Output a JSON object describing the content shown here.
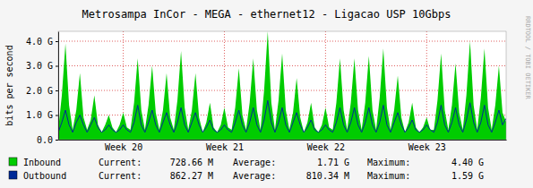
{
  "chart_data": {
    "type": "area",
    "title": "Metrosampa InCor - MEGA - ethernet12 - Ligacao USP 10Gbps",
    "y_label": "bits per second",
    "watermark": "RRDTOOL / TOBI OETIKER",
    "grid": true,
    "xlim": [
      0,
      31
    ],
    "xticks": [
      {
        "value": 4.5,
        "label": "Week 20"
      },
      {
        "value": 11.5,
        "label": "Week 21"
      },
      {
        "value": 18.5,
        "label": "Week 22"
      },
      {
        "value": 25.5,
        "label": "Week 23"
      }
    ],
    "ylim": [
      0,
      4.4
    ],
    "yticks": [
      {
        "value": 0,
        "label": "0.0"
      },
      {
        "value": 1,
        "label": "1.0 G"
      },
      {
        "value": 2,
        "label": "2.0 G"
      },
      {
        "value": 3,
        "label": "3.0 G"
      },
      {
        "value": 4,
        "label": "4.0 G"
      }
    ],
    "x": [
      0,
      0.25,
      0.5,
      0.75,
      1,
      1.25,
      1.5,
      1.75,
      2,
      2.25,
      2.5,
      2.75,
      3,
      3.25,
      3.5,
      3.75,
      4,
      4.25,
      4.5,
      4.75,
      5,
      5.25,
      5.5,
      5.75,
      6,
      6.25,
      6.5,
      6.75,
      7,
      7.25,
      7.5,
      7.75,
      8,
      8.25,
      8.5,
      8.75,
      9,
      9.25,
      9.5,
      9.75,
      10,
      10.25,
      10.5,
      10.75,
      11,
      11.25,
      11.5,
      11.75,
      12,
      12.25,
      12.5,
      12.75,
      13,
      13.25,
      13.5,
      13.75,
      14,
      14.25,
      14.5,
      14.75,
      15,
      15.25,
      15.5,
      15.75,
      16,
      16.25,
      16.5,
      16.75,
      17,
      17.25,
      17.5,
      17.75,
      18,
      18.25,
      18.5,
      18.75,
      19,
      19.25,
      19.5,
      19.75,
      20,
      20.25,
      20.5,
      20.75,
      21,
      21.25,
      21.5,
      21.75,
      22,
      22.25,
      22.5,
      22.75,
      23,
      23.25,
      23.5,
      23.75,
      24,
      24.25,
      24.5,
      24.75,
      25,
      25.25,
      25.5,
      25.75,
      26,
      26.25,
      26.5,
      26.75,
      27,
      27.25,
      27.5,
      27.75,
      28,
      28.25,
      28.5,
      28.75,
      29,
      29.25,
      29.5,
      29.75,
      30,
      30.25,
      30.5,
      30.75,
      31
    ],
    "series": [
      {
        "name": "Inbound",
        "type": "area",
        "color": "#00cc00",
        "values": [
          0.4,
          1.8,
          3.9,
          1.4,
          0.4,
          1.2,
          2.7,
          0.9,
          0.4,
          0.8,
          1.8,
          0.6,
          0.3,
          0.6,
          1.0,
          0.5,
          0.3,
          0.6,
          1.1,
          0.5,
          0.4,
          1.5,
          3.3,
          1.2,
          0.4,
          1.4,
          3.0,
          1.1,
          0.4,
          1.2,
          2.7,
          0.9,
          0.4,
          1.6,
          3.6,
          1.3,
          0.4,
          1.2,
          2.7,
          0.9,
          0.3,
          0.7,
          1.5,
          0.5,
          0.3,
          0.6,
          1.3,
          0.5,
          0.4,
          1.3,
          2.9,
          1.0,
          0.4,
          1.5,
          3.3,
          1.2,
          0.4,
          2.0,
          4.4,
          1.5,
          0.4,
          1.6,
          3.5,
          1.2,
          0.4,
          1.1,
          2.5,
          0.9,
          0.3,
          0.7,
          1.5,
          0.5,
          0.3,
          0.6,
          1.3,
          0.5,
          0.4,
          1.5,
          3.3,
          1.2,
          0.4,
          1.5,
          3.3,
          1.2,
          0.4,
          1.5,
          3.4,
          1.2,
          0.4,
          1.7,
          3.7,
          1.3,
          0.4,
          1.2,
          2.6,
          0.9,
          0.3,
          0.7,
          1.5,
          0.5,
          0.3,
          0.5,
          0.9,
          0.4,
          0.4,
          1.6,
          3.5,
          1.2,
          0.4,
          1.4,
          3.1,
          1.1,
          0.4,
          1.8,
          4.0,
          1.4,
          0.4,
          1.7,
          3.7,
          1.3,
          0.4,
          1.4,
          3.0,
          1.1,
          0.73
        ],
        "stats": [
          {
            "name": "Current:",
            "text": "728.66 M"
          },
          {
            "name": "Average:",
            "text": "1.71 G"
          },
          {
            "name": "Maximum:",
            "text": "4.40 G"
          }
        ]
      },
      {
        "name": "Outbound",
        "type": "line",
        "color": "#002a97",
        "values": [
          0.3,
          0.7,
          1.2,
          0.6,
          0.3,
          0.7,
          1.0,
          0.6,
          0.3,
          0.6,
          0.9,
          0.5,
          0.3,
          0.4,
          0.6,
          0.4,
          0.3,
          0.4,
          0.6,
          0.4,
          0.3,
          0.7,
          1.4,
          0.6,
          0.3,
          0.7,
          1.2,
          0.6,
          0.3,
          0.7,
          1.1,
          0.6,
          0.3,
          0.7,
          1.3,
          0.6,
          0.3,
          0.7,
          1.1,
          0.6,
          0.3,
          0.5,
          0.8,
          0.4,
          0.3,
          0.4,
          0.6,
          0.4,
          0.3,
          0.7,
          1.2,
          0.6,
          0.3,
          0.7,
          1.3,
          0.6,
          0.3,
          0.8,
          1.59,
          0.7,
          0.3,
          0.7,
          1.3,
          0.6,
          0.3,
          0.7,
          1.1,
          0.6,
          0.3,
          0.5,
          0.8,
          0.4,
          0.3,
          0.4,
          0.6,
          0.4,
          0.3,
          0.7,
          1.3,
          0.6,
          0.3,
          0.7,
          1.3,
          0.6,
          0.3,
          0.7,
          1.3,
          0.6,
          0.3,
          0.7,
          1.4,
          0.6,
          0.3,
          0.7,
          1.1,
          0.6,
          0.3,
          0.5,
          0.8,
          0.4,
          0.3,
          0.4,
          0.6,
          0.4,
          0.3,
          0.7,
          1.4,
          0.6,
          0.3,
          0.7,
          1.3,
          0.6,
          0.3,
          0.8,
          1.5,
          0.7,
          0.3,
          0.7,
          1.4,
          0.6,
          0.3,
          0.7,
          1.2,
          0.6,
          0.86
        ],
        "stats": [
          {
            "name": "Current:",
            "text": "862.27 M"
          },
          {
            "name": "Average:",
            "text": "810.34 M"
          },
          {
            "name": "Maximum:",
            "text": "1.59 G"
          }
        ]
      }
    ]
  }
}
